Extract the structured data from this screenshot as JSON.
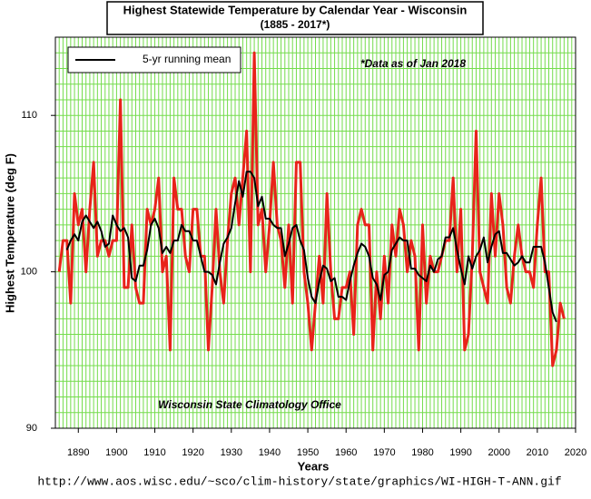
{
  "chart_data": {
    "type": "line",
    "title": "Highest Statewide Temperature by Calendar Year - Wisconsin",
    "subtitle": "(1885 - 2017*)",
    "x_label": "Years",
    "y_label": "Highest Temperature (deg F)",
    "annotations": [
      "*Data as of Jan 2018",
      "Wisconsin State Climatology Office"
    ],
    "source": "http://www.aos.wisc.edu/~sco/clim-history/state/graphics/WI-HIGH-T-ANN.gif",
    "x": [
      1885,
      1886,
      1887,
      1888,
      1889,
      1890,
      1891,
      1892,
      1893,
      1894,
      1895,
      1896,
      1897,
      1898,
      1899,
      1900,
      1901,
      1902,
      1903,
      1904,
      1905,
      1906,
      1907,
      1908,
      1909,
      1910,
      1911,
      1912,
      1913,
      1914,
      1915,
      1916,
      1917,
      1918,
      1919,
      1920,
      1921,
      1922,
      1923,
      1924,
      1925,
      1926,
      1927,
      1928,
      1929,
      1930,
      1931,
      1932,
      1933,
      1934,
      1935,
      1936,
      1937,
      1938,
      1939,
      1940,
      1941,
      1942,
      1943,
      1944,
      1945,
      1946,
      1947,
      1948,
      1949,
      1950,
      1951,
      1952,
      1953,
      1954,
      1955,
      1956,
      1957,
      1958,
      1959,
      1960,
      1961,
      1962,
      1963,
      1964,
      1965,
      1966,
      1967,
      1968,
      1969,
      1970,
      1971,
      1972,
      1973,
      1974,
      1975,
      1976,
      1977,
      1978,
      1979,
      1980,
      1981,
      1982,
      1983,
      1984,
      1985,
      1986,
      1987,
      1988,
      1989,
      1990,
      1991,
      1992,
      1993,
      1994,
      1995,
      1996,
      1997,
      1998,
      1999,
      2000,
      2001,
      2002,
      2003,
      2004,
      2005,
      2006,
      2007,
      2008,
      2009,
      2010,
      2011,
      2012,
      2013,
      2014,
      2015,
      2016,
      2017
    ],
    "series": [
      {
        "color": "#e8231a",
        "width": 3,
        "values": [
          100,
          102,
          102,
          98,
          105,
          103,
          104,
          100,
          104,
          107,
          101,
          102,
          102,
          101,
          102,
          102,
          111,
          99,
          99,
          103,
          99,
          98,
          98,
          104,
          103,
          104,
          106,
          100,
          101,
          95,
          106,
          104,
          104,
          101,
          100,
          104,
          104,
          101,
          101,
          95,
          99,
          104,
          100,
          98,
          102,
          105,
          106,
          103,
          106,
          109,
          100,
          114,
          103,
          104,
          100,
          103,
          107,
          103,
          102,
          99,
          103,
          98,
          107,
          107,
          100,
          98,
          95,
          98,
          101,
          98,
          105,
          100,
          97,
          97,
          99,
          99,
          100,
          96,
          103,
          104,
          103,
          103,
          95,
          100,
          97,
          101,
          98,
          103,
          101,
          104,
          103,
          100,
          102,
          101,
          95,
          103,
          98,
          101,
          100,
          100,
          101,
          102,
          102,
          106,
          100,
          104,
          95,
          96,
          101,
          109,
          100,
          99,
          98,
          105,
          101,
          105,
          103,
          99,
          98,
          101,
          103,
          101,
          100,
          100,
          99,
          103,
          106,
          100,
          100,
          94,
          95,
          98,
          97
        ]
      },
      {
        "name": "5-yr running mean",
        "color": "#000000",
        "width": 2,
        "values": [
          null,
          null,
          101.4,
          102.0,
          102.4,
          102.0,
          103.2,
          103.6,
          103.2,
          102.8,
          103.2,
          102.6,
          101.6,
          101.8,
          103.6,
          103.0,
          102.6,
          102.8,
          102.2,
          99.6,
          99.4,
          100.4,
          100.4,
          101.4,
          103.0,
          103.4,
          102.8,
          101.2,
          101.6,
          101.2,
          102.0,
          102.0,
          103.0,
          102.6,
          102.6,
          102.0,
          102.0,
          101.0,
          100.0,
          100.0,
          99.8,
          99.2,
          100.6,
          101.8,
          102.2,
          102.8,
          104.4,
          105.8,
          104.8,
          106.4,
          106.4,
          106.0,
          104.2,
          104.8,
          103.4,
          103.4,
          103.0,
          102.8,
          102.8,
          101.0,
          101.8,
          102.8,
          103.0,
          102.0,
          101.4,
          99.6,
          98.4,
          98.0,
          99.4,
          100.4,
          100.2,
          99.4,
          99.6,
          98.4,
          98.4,
          98.2,
          99.4,
          100.4,
          101.2,
          101.8,
          101.6,
          101.0,
          99.6,
          99.2,
          98.2,
          99.8,
          100.0,
          101.4,
          101.8,
          102.2,
          102.0,
          102.0,
          100.2,
          100.2,
          99.8,
          99.6,
          99.4,
          100.4,
          100.0,
          100.8,
          101.0,
          102.2,
          102.2,
          102.8,
          101.4,
          100.2,
          99.2,
          101.0,
          100.2,
          101.0,
          101.4,
          102.2,
          100.6,
          101.6,
          102.4,
          102.6,
          101.2,
          101.2,
          100.8,
          100.4,
          100.6,
          101.0,
          100.6,
          100.6,
          101.6,
          101.6,
          101.6,
          100.6,
          99.0,
          97.4,
          96.8,
          null,
          null
        ]
      }
    ],
    "xlim": [
      1884,
      2020
    ],
    "xticks": [
      1890,
      1900,
      1910,
      1920,
      1930,
      1940,
      1950,
      1960,
      1970,
      1980,
      1990,
      2000,
      2010,
      2020
    ],
    "ylim": [
      90,
      115
    ],
    "yticks": [
      90,
      100,
      110
    ],
    "grid": {
      "x_step": 1,
      "y_step": 1,
      "color": "#74dc4c"
    },
    "legend": "upper left"
  }
}
